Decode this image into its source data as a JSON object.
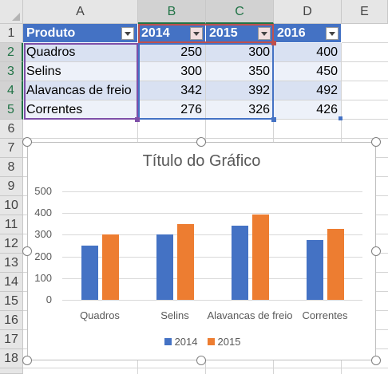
{
  "sheet": {
    "columns": [
      "A",
      "B",
      "C",
      "D",
      "E"
    ],
    "rows": [
      "1",
      "2",
      "3",
      "4",
      "5",
      "6",
      "7",
      "8",
      "9",
      "10",
      "11",
      "12",
      "13",
      "14",
      "15",
      "16",
      "17",
      "18"
    ],
    "table": {
      "headers": [
        "Produto",
        "2014",
        "2015",
        "2016"
      ],
      "data": [
        [
          "Quadros",
          "250",
          "300",
          "400"
        ],
        [
          "Selins",
          "300",
          "350",
          "450"
        ],
        [
          "Alavancas de freio",
          "342",
          "392",
          "492"
        ],
        [
          "Correntes",
          "276",
          "326",
          "426"
        ]
      ]
    },
    "colors": {
      "header": "#4472c4",
      "band1": "#d9e1f2",
      "band2": "#edf1f9",
      "selection_green": "#217346"
    }
  },
  "chart_data": {
    "type": "bar",
    "title": "Título do Gráfico",
    "categories": [
      "Quadros",
      "Selins",
      "Alavancas de freio",
      "Correntes"
    ],
    "series": [
      {
        "name": "2014",
        "values": [
          250,
          300,
          342,
          276
        ],
        "color": "#4472c4"
      },
      {
        "name": "2015",
        "values": [
          300,
          350,
          392,
          326
        ],
        "color": "#ed7d31"
      }
    ],
    "yticks": [
      "0",
      "100",
      "200",
      "300",
      "400",
      "500"
    ],
    "ylim": [
      0,
      500
    ],
    "grid": true,
    "legend_position": "bottom"
  }
}
